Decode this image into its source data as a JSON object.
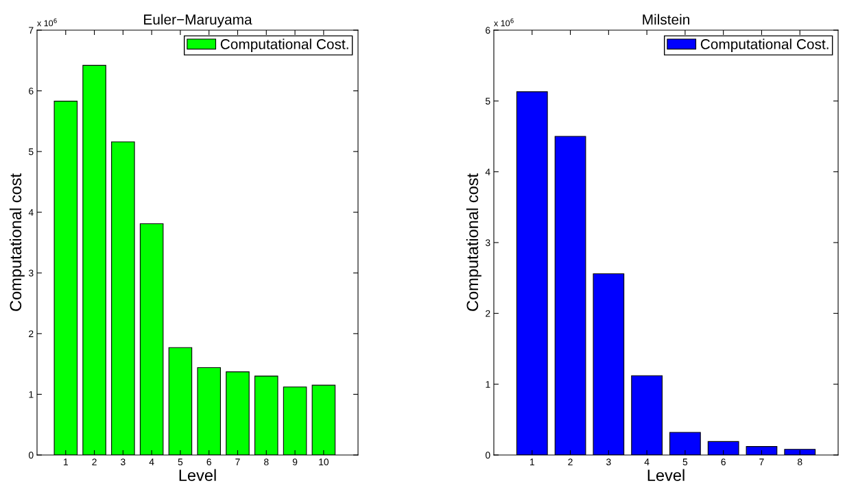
{
  "chart_data": [
    {
      "type": "bar",
      "title": "Euler−Maruyama",
      "xlabel": "Level",
      "ylabel": "Computational cost",
      "annotations": [
        "x 10$^{6}$"
      ],
      "x": [
        1,
        2,
        3,
        4,
        5,
        6,
        7,
        8,
        9,
        10
      ],
      "xlim": [
        0,
        11.2
      ],
      "xticks": [
        1,
        2,
        3,
        4,
        5,
        6,
        7,
        8,
        9,
        10
      ],
      "series": [
        {
          "name": "Computational Cost.",
          "color": "#00ff00",
          "values": [
            5.83,
            6.42,
            5.16,
            3.81,
            1.77,
            1.44,
            1.37,
            1.3,
            1.12,
            1.15
          ]
        }
      ],
      "ylim": [
        0,
        7
      ],
      "yticks": [
        0,
        1,
        2,
        3,
        4,
        5,
        6,
        7
      ],
      "legend": "top right"
    },
    {
      "type": "bar",
      "title": "Milstein",
      "xlabel": "Level",
      "ylabel": "Computational cost",
      "annotations": [
        "x 10$^{6}$"
      ],
      "x": [
        1,
        2,
        3,
        4,
        5,
        6,
        7,
        8
      ],
      "xlim": [
        0,
        9
      ],
      "xticks": [
        1,
        2,
        3,
        4,
        5,
        6,
        7,
        8
      ],
      "series": [
        {
          "name": "Computational Cost.",
          "color": "#0000ff",
          "values": [
            5.13,
            4.5,
            2.56,
            1.12,
            0.32,
            0.19,
            0.12,
            0.08
          ]
        }
      ],
      "ylim": [
        0,
        6
      ],
      "yticks": [
        0,
        1,
        2,
        3,
        4,
        5,
        6
      ],
      "legend": "top right"
    }
  ]
}
